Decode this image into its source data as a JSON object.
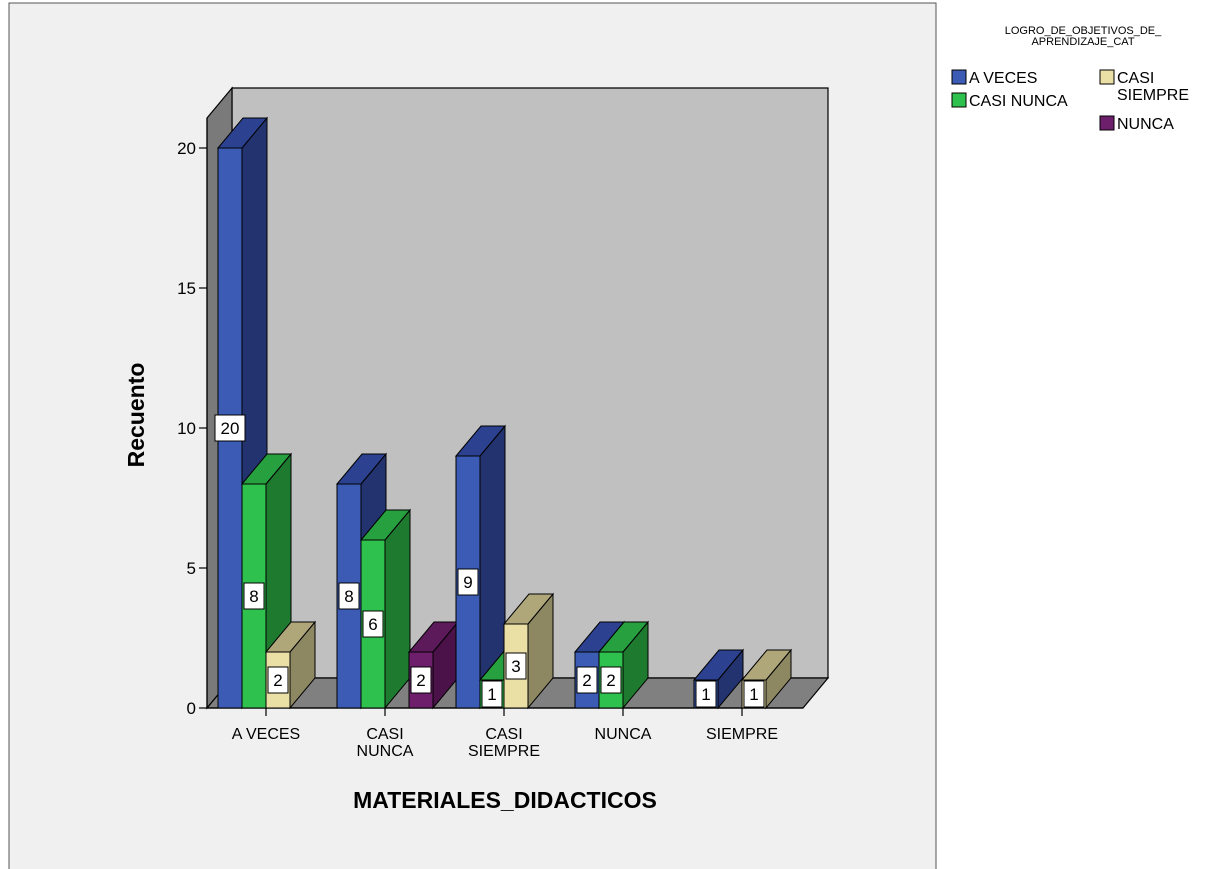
{
  "chart_data": {
    "type": "bar",
    "style": "3d-clustered",
    "xlabel": "MATERIALES_DIDACTICOS",
    "ylabel": "Recuento",
    "categories": [
      [
        "A VECES"
      ],
      [
        "CASI",
        "NUNCA"
      ],
      [
        "CASI",
        "SIEMPRE"
      ],
      [
        "NUNCA"
      ],
      [
        "SIEMPRE"
      ]
    ],
    "yticks": [
      0,
      5,
      10,
      15,
      20
    ],
    "ylim": [
      0,
      20
    ],
    "legend": {
      "title": [
        "LOGRO_DE_OBJETIVOS_DE_",
        "APRENDIZAJE_CAT"
      ],
      "placement": "top-right"
    },
    "series": [
      {
        "name": "A VECES",
        "color": "#3B5BB5",
        "side": "#233370",
        "top": "#2C4291",
        "values": [
          20,
          8,
          9,
          2,
          1
        ]
      },
      {
        "name": "CASI NUNCA",
        "color": "#2FC14D",
        "side": "#1E7A2F",
        "top": "#27A03F",
        "values": [
          8,
          6,
          1,
          2,
          null
        ]
      },
      {
        "name": "CASI SIEMPRE",
        "color": "#EAE0A6",
        "side": "#8E8862",
        "top": "#AFA77A",
        "legend_label": [
          "CASI",
          "SIEMPRE"
        ],
        "values": [
          2,
          null,
          3,
          null,
          1
        ]
      },
      {
        "name": "NUNCA",
        "color": "#6D1F6C",
        "side": "#4A1248",
        "top": "#5C1A5A",
        "values": [
          null,
          2,
          null,
          null,
          null
        ]
      }
    ],
    "grid": false,
    "colors": {
      "background": "#F0F0F0",
      "back_wall": "#C0C0C0",
      "left_wall": "#7A7A7A",
      "floor": "#808080"
    }
  }
}
